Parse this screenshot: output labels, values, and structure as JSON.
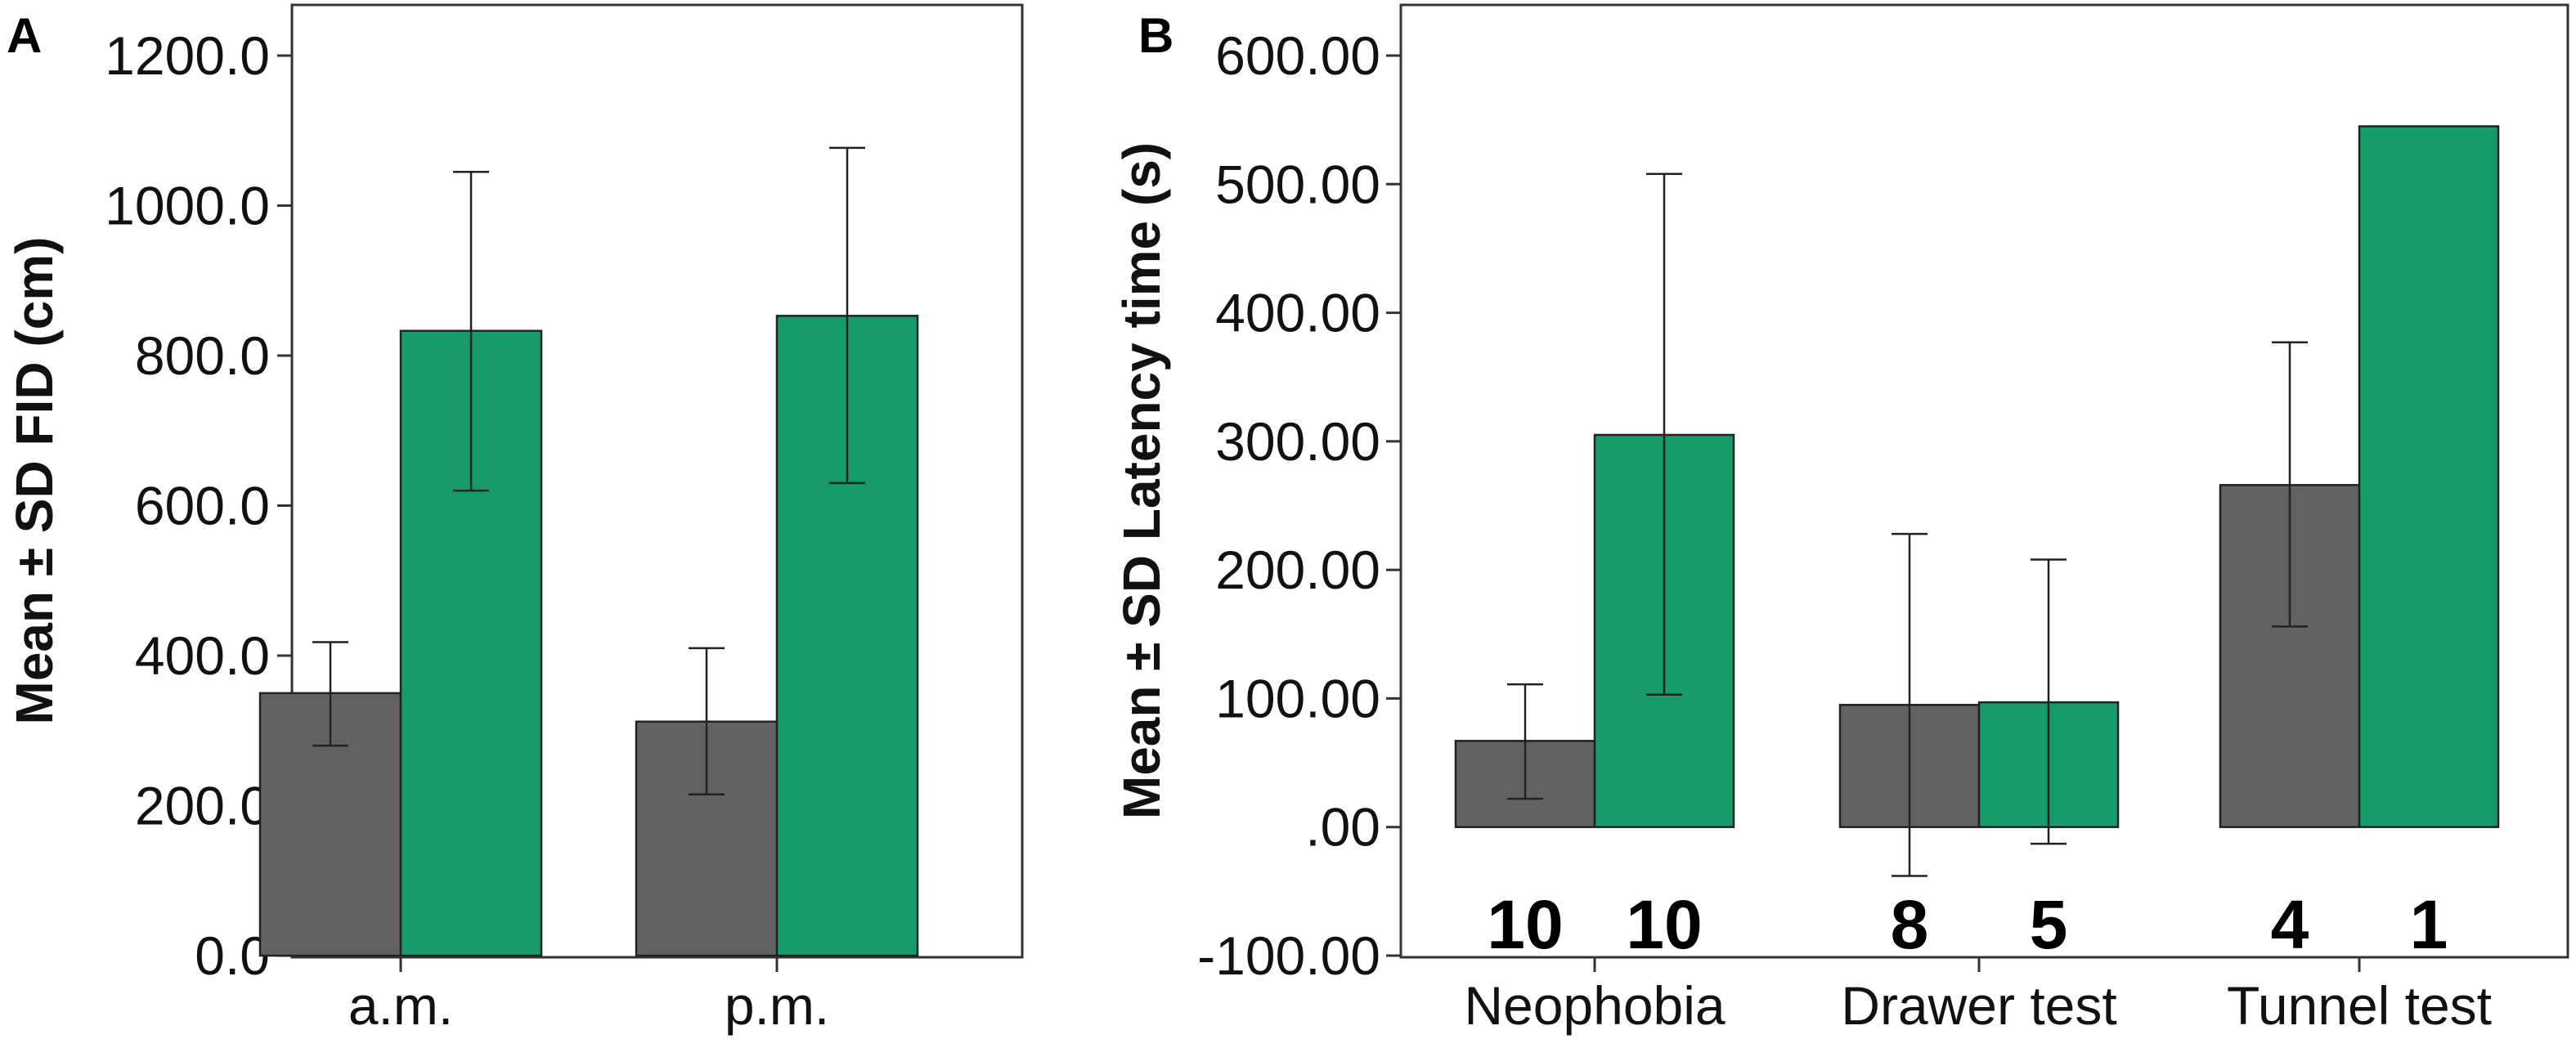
{
  "colors": {
    "grey": "#626262",
    "green": "#179b69"
  },
  "chart_data": [
    {
      "panel": "A",
      "type": "bar",
      "ylabel": "Mean ± SD FID (cm)",
      "xlabel": "",
      "ylim": [
        0,
        1300
      ],
      "yticks": [
        0,
        200,
        400,
        600,
        800,
        1000,
        1200
      ],
      "ytick_labels": [
        "0.0",
        "200.0",
        "400.0",
        "600.0",
        "800.0",
        "1000.0",
        "1200.0"
      ],
      "categories": [
        "a.m.",
        "p.m."
      ],
      "series": [
        {
          "name": "grey",
          "color": "#626262",
          "values": [
            350,
            312
          ],
          "err_low": [
            280,
            215
          ],
          "err_high": [
            418,
            410
          ]
        },
        {
          "name": "green",
          "color": "#179b69",
          "values": [
            833,
            853
          ],
          "err_low": [
            620,
            630
          ],
          "err_high": [
            1045,
            1077
          ]
        }
      ]
    },
    {
      "panel": "B",
      "type": "bar",
      "ylabel": "Mean ± SD Latency time (s)",
      "xlabel": "",
      "ylim": [
        -100,
        640
      ],
      "yticks": [
        -100,
        0,
        100,
        200,
        300,
        400,
        500,
        600
      ],
      "ytick_labels": [
        "-100.00",
        ".00",
        "100.00",
        "200.00",
        "300.00",
        "400.00",
        "500.00",
        "600.00"
      ],
      "categories": [
        "Neophobia",
        "Drawer test",
        "Tunnel test"
      ],
      "series": [
        {
          "name": "grey",
          "color": "#626262",
          "values": [
            67,
            95,
            266
          ],
          "err_low": [
            22,
            -38,
            156
          ],
          "err_high": [
            111,
            228,
            377
          ],
          "n": [
            "10",
            "8",
            "4"
          ]
        },
        {
          "name": "green",
          "color": "#179b69",
          "values": [
            305,
            97,
            545
          ],
          "err_low": [
            103,
            -13,
            null
          ],
          "err_high": [
            508,
            208,
            null
          ],
          "n": [
            "10",
            "5",
            "1"
          ]
        }
      ]
    }
  ]
}
